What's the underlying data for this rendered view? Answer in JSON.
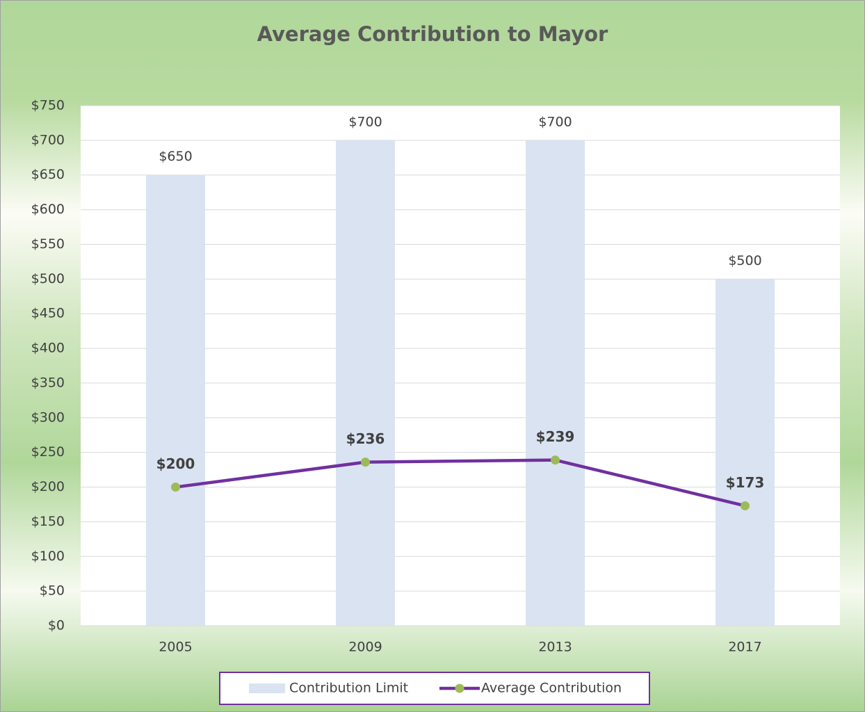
{
  "chart_data": {
    "type": "bar",
    "title": "Average Contribution to Mayor",
    "categories": [
      "2005",
      "2009",
      "2013",
      "2017"
    ],
    "series": [
      {
        "name": "Contribution Limit",
        "type": "bar",
        "color": "#dae3f1",
        "values": [
          650,
          700,
          700,
          500
        ],
        "value_labels": [
          "$650",
          "$700",
          "$700",
          "$500"
        ]
      },
      {
        "name": "Average Contribution",
        "type": "line",
        "color": "#7030a0",
        "marker_color": "#9bbb59",
        "values": [
          200,
          236,
          239,
          173
        ],
        "value_labels": [
          "$200",
          "$236",
          "$239",
          "$173"
        ]
      }
    ],
    "ylim": [
      0,
      750
    ],
    "yticks": [
      {
        "value": 0,
        "label": "$0"
      },
      {
        "value": 50,
        "label": "$50"
      },
      {
        "value": 100,
        "label": "$100"
      },
      {
        "value": 150,
        "label": "$150"
      },
      {
        "value": 200,
        "label": "$200"
      },
      {
        "value": 250,
        "label": "$250"
      },
      {
        "value": 300,
        "label": "$300"
      },
      {
        "value": 350,
        "label": "$350"
      },
      {
        "value": 400,
        "label": "$400"
      },
      {
        "value": 450,
        "label": "$450"
      },
      {
        "value": 500,
        "label": "$500"
      },
      {
        "value": 550,
        "label": "$550"
      },
      {
        "value": 600,
        "label": "$600"
      },
      {
        "value": 650,
        "label": "$650"
      },
      {
        "value": 700,
        "label": "$700"
      },
      {
        "value": 750,
        "label": "$750"
      }
    ],
    "grid": true,
    "legend": "bottom"
  }
}
